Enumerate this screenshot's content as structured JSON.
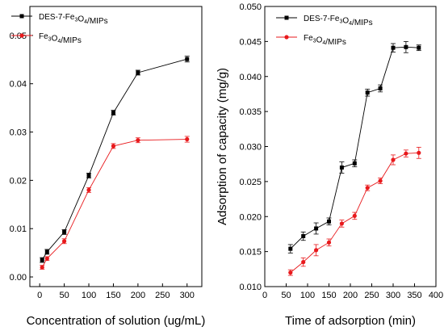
{
  "chart_data": [
    {
      "type": "line",
      "title": "",
      "xlabel": "Concentration of solution (ug/mL)",
      "ylabel": "",
      "xlim": [
        -20,
        330
      ],
      "ylim": [
        -0.002,
        0.056
      ],
      "xticks": [
        0,
        50,
        100,
        150,
        200,
        250,
        300
      ],
      "yticks": [
        0.0,
        0.01,
        0.02,
        0.03,
        0.04,
        0.05
      ],
      "ytick_decimals": 2,
      "grid": false,
      "legend_position": "top-left",
      "series": [
        {
          "name": "DES-7-Fe3O4/MIPs",
          "color": "#000000",
          "marker": "square",
          "x": [
            5,
            15,
            50,
            100,
            150,
            200,
            300
          ],
          "y": [
            0.0035,
            0.0052,
            0.0093,
            0.021,
            0.034,
            0.0423,
            0.0451
          ],
          "err": [
            0.0005,
            0.0005,
            0.0005,
            0.0005,
            0.0005,
            0.0005,
            0.0006
          ]
        },
        {
          "name": "Fe3O4/MIPs",
          "color": "#e8191c",
          "marker": "circle",
          "x": [
            5,
            15,
            50,
            100,
            150,
            200,
            300
          ],
          "y": [
            0.002,
            0.0038,
            0.0074,
            0.018,
            0.0271,
            0.0283,
            0.0285
          ],
          "err": [
            0.0004,
            0.0004,
            0.0005,
            0.0005,
            0.0005,
            0.0005,
            0.0006
          ]
        }
      ]
    },
    {
      "type": "line",
      "title": "",
      "xlabel": "Time of adsorption (min)",
      "ylabel": "Adsorption of capacity (mg/g)",
      "xlim": [
        0,
        400
      ],
      "ylim": [
        0.01,
        0.05
      ],
      "xticks": [
        0,
        50,
        100,
        150,
        200,
        250,
        300,
        350,
        400
      ],
      "yticks": [
        0.01,
        0.015,
        0.02,
        0.025,
        0.03,
        0.035,
        0.04,
        0.045,
        0.05
      ],
      "ytick_decimals": 3,
      "grid": false,
      "legend_position": "top-left",
      "series": [
        {
          "name": "DES-7-Fe3O4/MIPs",
          "color": "#000000",
          "marker": "square",
          "x": [
            60,
            90,
            120,
            150,
            180,
            210,
            240,
            270,
            300,
            330,
            360
          ],
          "y": [
            0.0154,
            0.0172,
            0.0183,
            0.0193,
            0.027,
            0.0276,
            0.0377,
            0.0383,
            0.0441,
            0.0442,
            0.0441
          ],
          "err": [
            0.0006,
            0.0006,
            0.0008,
            0.0005,
            0.0008,
            0.0005,
            0.0005,
            0.0005,
            0.0006,
            0.0008,
            0.0004
          ]
        },
        {
          "name": "Fe3O4/MIPs",
          "color": "#e8191c",
          "marker": "circle",
          "x": [
            60,
            90,
            120,
            150,
            180,
            210,
            240,
            270,
            300,
            330,
            360
          ],
          "y": [
            0.012,
            0.0135,
            0.0152,
            0.0163,
            0.019,
            0.0201,
            0.0241,
            0.0251,
            0.0281,
            0.029,
            0.0291
          ],
          "err": [
            0.0004,
            0.0006,
            0.0008,
            0.0005,
            0.0005,
            0.0005,
            0.0004,
            0.0004,
            0.0007,
            0.0005,
            0.0008
          ]
        }
      ]
    }
  ]
}
